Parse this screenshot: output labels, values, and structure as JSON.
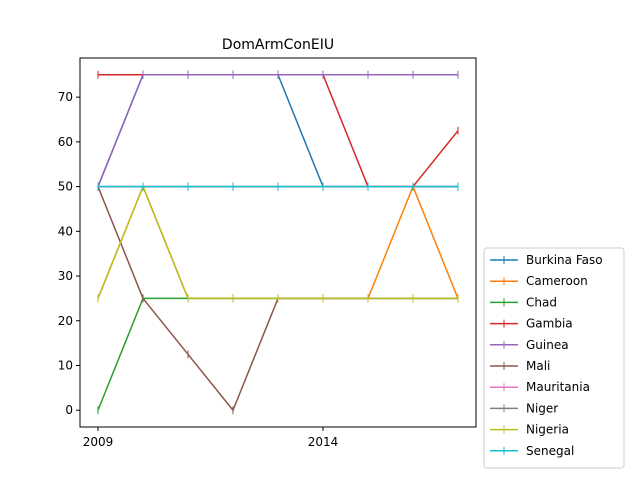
{
  "chart_data": {
    "type": "line",
    "title": "DomArmConEIU",
    "xlabel": "",
    "ylabel": "",
    "x": [
      2009,
      2010,
      2011,
      2012,
      2013,
      2014,
      2015,
      2016,
      2017
    ],
    "xticks": [
      2009,
      2014
    ],
    "xtick_labels": [
      "2009",
      "2014"
    ],
    "ylim": [
      -3.75,
      78.75
    ],
    "xlim": [
      2008.6,
      2017.4
    ],
    "yticks": [
      0,
      10,
      20,
      30,
      40,
      50,
      60,
      70
    ],
    "ytick_labels": [
      "0",
      "10",
      "20",
      "30",
      "40",
      "50",
      "60",
      "70"
    ],
    "grid": false,
    "legend_placement": "outside-right-bottom",
    "marker": "vertical-tick",
    "series": [
      {
        "name": "Burkina Faso",
        "color": "#1f77b4",
        "values": [
          50,
          50,
          50,
          50,
          50,
          50,
          50,
          50,
          50
        ]
      },
      {
        "name": "Cameroon",
        "color": "#ff7f0e",
        "values": [
          25,
          50,
          25,
          25,
          25,
          25,
          25,
          50,
          25
        ]
      },
      {
        "name": "Chad",
        "color": "#2ca02c",
        "values": [
          0,
          25,
          25,
          25,
          25,
          25,
          25,
          25,
          25
        ]
      },
      {
        "name": "Gambia",
        "color": "#d62728",
        "values": [
          75,
          75,
          75,
          75,
          75,
          75,
          50,
          50,
          62.5
        ]
      },
      {
        "name": "Guinea",
        "color": "#9467bd",
        "values": [
          50,
          75,
          75,
          75,
          75,
          75,
          75,
          75,
          75
        ]
      },
      {
        "name": "Mali",
        "color": "#8c564b",
        "values": [
          50,
          25,
          12.5,
          0,
          25,
          25,
          25,
          25,
          25
        ]
      },
      {
        "name": "Mauritania",
        "color": "#e377c2",
        "values": [
          50,
          50,
          50,
          50,
          50,
          50,
          50,
          50,
          50
        ]
      },
      {
        "name": "Niger",
        "color": "#7f7f7f",
        "values": [
          50,
          50,
          50,
          50,
          50,
          50,
          50,
          50,
          50
        ]
      },
      {
        "name": "Nigeria",
        "color": "#bcbd22",
        "values": [
          25,
          50,
          25,
          25,
          25,
          25,
          25,
          25,
          25
        ]
      },
      {
        "name": "Senegal",
        "color": "#17becf",
        "values": [
          50,
          50,
          50,
          50,
          50,
          50,
          50,
          50,
          50
        ]
      }
    ],
    "overrides": [
      {
        "series": "Burkina Faso",
        "values": [
          50,
          75,
          75,
          75,
          75,
          50,
          50,
          50,
          50
        ]
      }
    ]
  }
}
